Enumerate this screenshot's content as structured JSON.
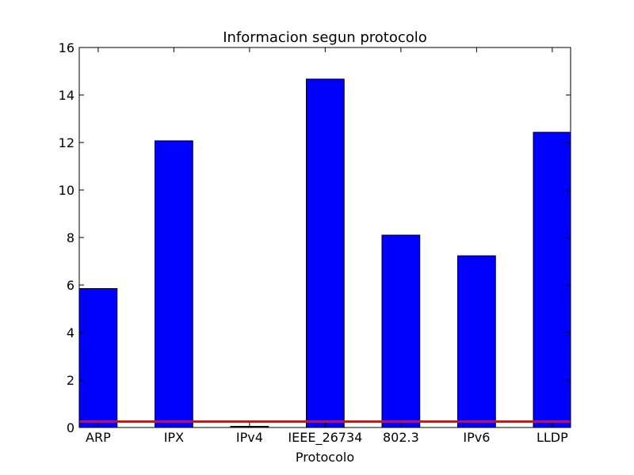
{
  "chart_data": {
    "type": "bar",
    "title": "Informacion segun protocolo",
    "xlabel": "Protocolo",
    "ylabel": "",
    "categories": [
      "ARP",
      "IPX",
      "IPv4",
      "IEEE_26734",
      "802.3",
      "IPv6",
      "LLDP"
    ],
    "values": [
      5.85,
      12.07,
      0.05,
      14.67,
      8.1,
      7.23,
      12.43
    ],
    "ylim": [
      0,
      16
    ],
    "yticks": [
      0,
      2,
      4,
      6,
      8,
      10,
      12,
      14,
      16
    ],
    "reference_line": {
      "y": 0.25,
      "color": "#ff0000"
    },
    "bar_color": "#0000ff",
    "grid": false
  }
}
